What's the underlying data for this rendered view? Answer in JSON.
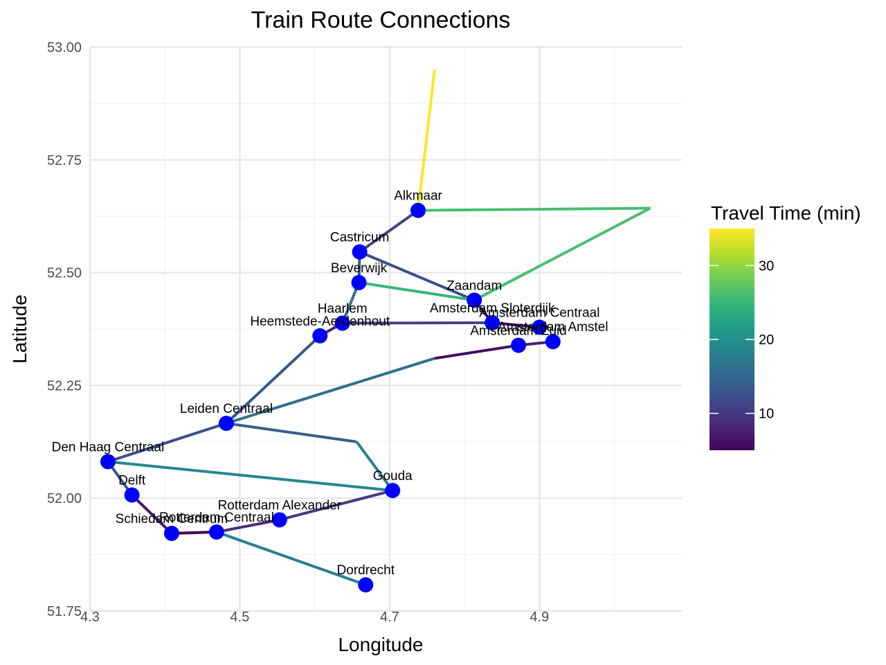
{
  "chart_data": {
    "type": "line",
    "title": "Train Route Connections",
    "xlabel": "Longitude",
    "ylabel": "Latitude",
    "xlim": [
      4.3,
      5.09
    ],
    "ylim": [
      51.75,
      53.0
    ],
    "x_ticks": [
      4.3,
      4.5,
      4.7,
      4.9
    ],
    "x_tick_labels": [
      "4.3",
      "4.5",
      "4.7",
      "4.9"
    ],
    "y_ticks": [
      51.75,
      52.0,
      52.25,
      52.5,
      52.75,
      53.0
    ],
    "y_tick_labels": [
      "51.75",
      "52.00",
      "52.25",
      "52.50",
      "52.75",
      "53.00"
    ],
    "grid": true,
    "legend": {
      "title": "Travel Time (min)",
      "position": "right",
      "colormap": "viridis",
      "range": [
        5,
        35
      ],
      "ticks": [
        10,
        20,
        30
      ],
      "tick_labels": [
        "10",
        "20",
        "30"
      ]
    },
    "stations": [
      {
        "name": "Alkmaar",
        "lon": 4.738,
        "lat": 52.638
      },
      {
        "name": "Castricum",
        "lon": 4.66,
        "lat": 52.546
      },
      {
        "name": "Beverwijk",
        "lon": 4.659,
        "lat": 52.478
      },
      {
        "name": "Zaandam",
        "lon": 4.813,
        "lat": 52.439
      },
      {
        "name": "Haarlem",
        "lon": 4.637,
        "lat": 52.388
      },
      {
        "name": "Heemstede-Aerdenhout",
        "lon": 4.607,
        "lat": 52.36
      },
      {
        "name": "Amsterdam Sloterdijk",
        "lon": 4.837,
        "lat": 52.389
      },
      {
        "name": "Amsterdam Centraal",
        "lon": 4.9,
        "lat": 52.379
      },
      {
        "name": "Amsterdam Zuid",
        "lon": 4.872,
        "lat": 52.339
      },
      {
        "name": "Amsterdam Amstel",
        "lon": 4.918,
        "lat": 52.347
      },
      {
        "name": "Leiden Centraal",
        "lon": 4.482,
        "lat": 52.166
      },
      {
        "name": "Den Haag Centraal",
        "lon": 4.324,
        "lat": 52.081
      },
      {
        "name": "Delft",
        "lon": 4.356,
        "lat": 52.007
      },
      {
        "name": "Schiedam Centrum",
        "lon": 4.409,
        "lat": 51.922
      },
      {
        "name": "Rotterdam Centraal",
        "lon": 4.469,
        "lat": 51.925
      },
      {
        "name": "Rotterdam Alexander",
        "lon": 4.553,
        "lat": 51.952
      },
      {
        "name": "Gouda",
        "lon": 4.704,
        "lat": 52.017
      },
      {
        "name": "Dordrecht",
        "lon": 4.668,
        "lat": 51.808
      }
    ],
    "connections": [
      {
        "from": [
          4.738,
          52.638
        ],
        "to": [
          4.76,
          52.95
        ],
        "travel_time": 35
      },
      {
        "from": [
          4.738,
          52.638
        ],
        "to": [
          5.048,
          52.643
        ],
        "travel_time": 26
      },
      {
        "from": [
          5.048,
          52.643
        ],
        "to": [
          4.813,
          52.439
        ],
        "travel_time": 26
      },
      {
        "from": [
          4.738,
          52.638
        ],
        "to": [
          4.66,
          52.546
        ],
        "travel_time": 11
      },
      {
        "from": [
          4.66,
          52.546
        ],
        "to": [
          4.659,
          52.478
        ],
        "travel_time": 14
      },
      {
        "from": [
          4.66,
          52.546
        ],
        "to": [
          4.813,
          52.439
        ],
        "travel_time": 12
      },
      {
        "from": [
          4.659,
          52.478
        ],
        "to": [
          4.813,
          52.439
        ],
        "travel_time": 25
      },
      {
        "from": [
          4.659,
          52.478
        ],
        "to": [
          4.637,
          52.388
        ],
        "travel_time": 16
      },
      {
        "from": [
          4.637,
          52.388
        ],
        "to": [
          4.837,
          52.389
        ],
        "travel_time": 11
      },
      {
        "from": [
          4.813,
          52.439
        ],
        "to": [
          4.837,
          52.389
        ],
        "travel_time": 9
      },
      {
        "from": [
          4.837,
          52.389
        ],
        "to": [
          4.9,
          52.379
        ],
        "travel_time": 6
      },
      {
        "from": [
          4.637,
          52.388
        ],
        "to": [
          4.607,
          52.36
        ],
        "travel_time": 8
      },
      {
        "from": [
          4.607,
          52.36
        ],
        "to": [
          4.482,
          52.166
        ],
        "travel_time": 13
      },
      {
        "from": [
          4.872,
          52.339
        ],
        "to": [
          4.918,
          52.347
        ],
        "travel_time": 8
      },
      {
        "from": [
          4.872,
          52.339
        ],
        "to": [
          4.76,
          52.31
        ],
        "travel_time": 6
      },
      {
        "from": [
          4.76,
          52.31
        ],
        "to": [
          4.482,
          52.166
        ],
        "travel_time": 16
      },
      {
        "from": [
          4.482,
          52.166
        ],
        "to": [
          4.324,
          52.081
        ],
        "travel_time": 12
      },
      {
        "from": [
          4.482,
          52.166
        ],
        "to": [
          4.656,
          52.125
        ],
        "travel_time": 14
      },
      {
        "from": [
          4.656,
          52.125
        ],
        "to": [
          4.704,
          52.017
        ],
        "travel_time": 18
      },
      {
        "from": [
          4.324,
          52.081
        ],
        "to": [
          4.704,
          52.017
        ],
        "travel_time": 19
      },
      {
        "from": [
          4.324,
          52.081
        ],
        "to": [
          4.356,
          52.007
        ],
        "travel_time": 13
      },
      {
        "from": [
          4.356,
          52.007
        ],
        "to": [
          4.409,
          51.922
        ],
        "travel_time": 7
      },
      {
        "from": [
          4.409,
          51.922
        ],
        "to": [
          4.469,
          51.925
        ],
        "travel_time": 5
      },
      {
        "from": [
          4.469,
          51.925
        ],
        "to": [
          4.553,
          51.952
        ],
        "travel_time": 9
      },
      {
        "from": [
          4.553,
          51.952
        ],
        "to": [
          4.704,
          52.017
        ],
        "travel_time": 10
      },
      {
        "from": [
          4.469,
          51.925
        ],
        "to": [
          4.668,
          51.808
        ],
        "travel_time": 18
      }
    ]
  },
  "colors": {
    "station_fill": "#0000ff",
    "viridis_stops": [
      "#440154",
      "#482878",
      "#3e4a89",
      "#31688e",
      "#26828e",
      "#1f9e89",
      "#35b779",
      "#6ece58",
      "#b5de2b",
      "#fde725"
    ]
  }
}
